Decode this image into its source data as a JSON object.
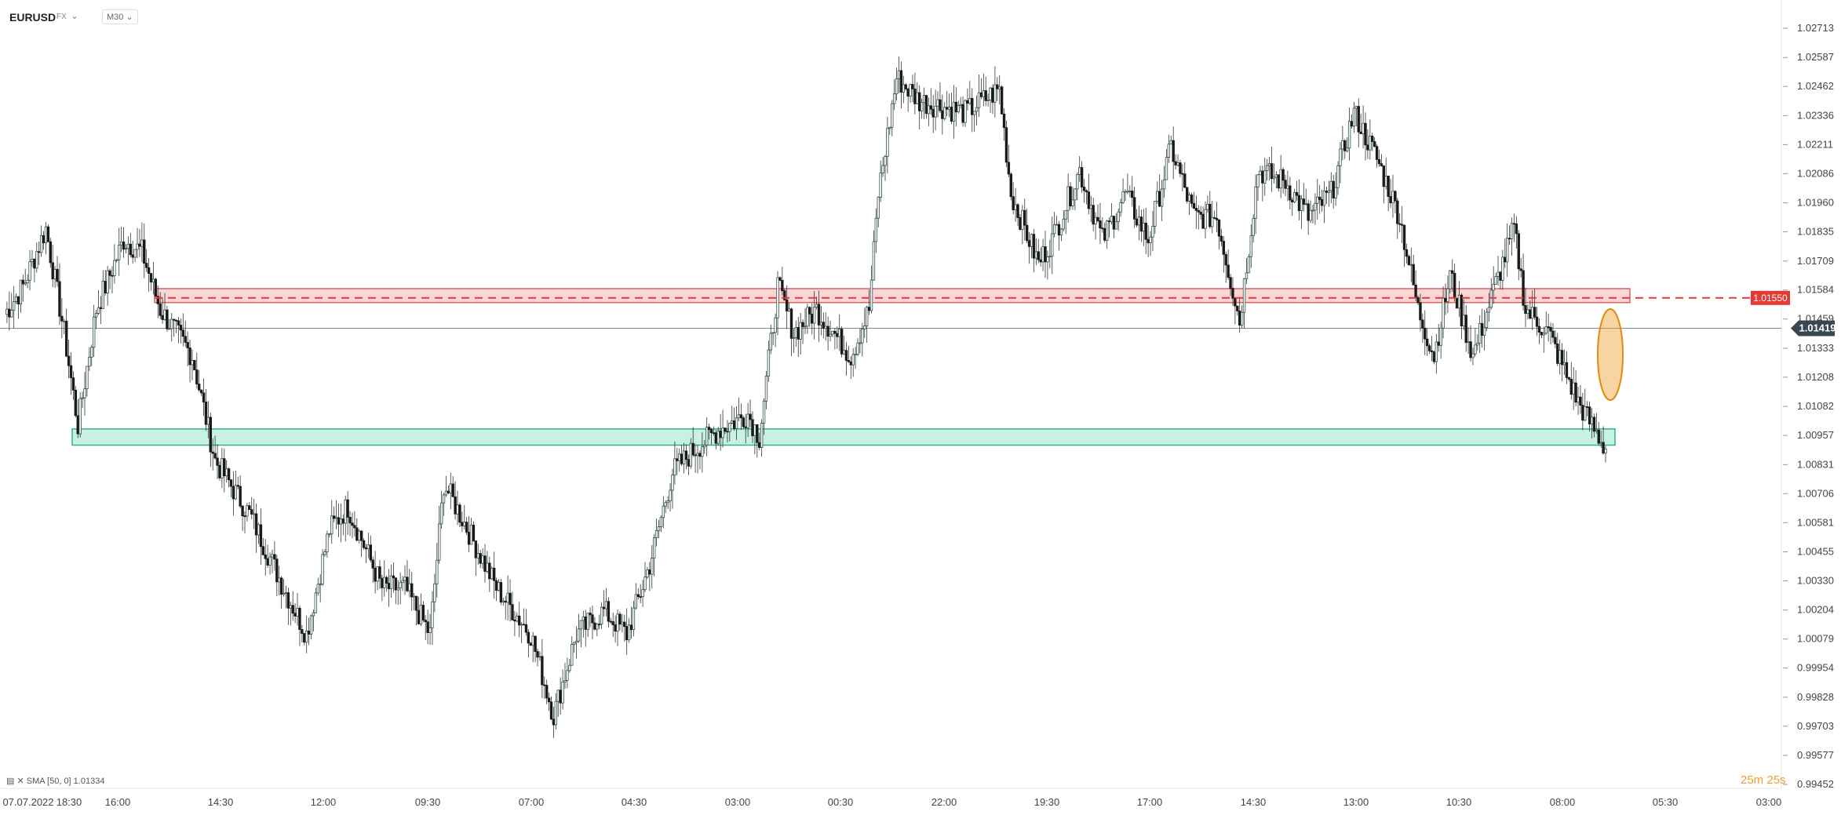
{
  "header": {
    "symbol": "EURUSD",
    "market": "FX",
    "market_dropdown_icon": "chevron-down-icon",
    "timeframe": "M30",
    "timeframe_dropdown_icon": "chevron-down-icon"
  },
  "indicator": {
    "icons": [
      "bar-chart-icon",
      "close-icon"
    ],
    "label": "SMA [50, 0] 1.01334"
  },
  "timer": "25m 25s",
  "colors": {
    "up_candle": "#2f4f4f",
    "down_candle": "#1a1a1a",
    "wick": "#333333",
    "resistance_zone": "#f08a8a",
    "support_zone": "#5ed6aa",
    "price_line": "#e53935",
    "current_price": "#37474f",
    "highlight": "#f0a030"
  },
  "chart_data": {
    "type": "candlestick",
    "title": "EURUSD M30",
    "y_ticks": [
      "1.02713",
      "1.02587",
      "1.02462",
      "1.02336",
      "1.02211",
      "1.02086",
      "1.01960",
      "1.01835",
      "1.01709",
      "1.01584",
      "1.01459",
      "1.01333",
      "1.01208",
      "1.01082",
      "1.00957",
      "1.00831",
      "1.00706",
      "1.00581",
      "1.00455",
      "1.00330",
      "1.00204",
      "1.00079",
      "0.99954",
      "0.99828",
      "0.99703",
      "0.99577",
      "0.99452"
    ],
    "x_ticks": [
      "07.07.2022",
      "18:30",
      "16:00",
      "14:30",
      "12:00",
      "09:30",
      "07:00",
      "04:30",
      "03:00",
      "00:30",
      "22:00",
      "19:30",
      "17:00",
      "14:30",
      "13:00",
      "10:30",
      "08:00",
      "05:30",
      "03:00"
    ],
    "ylim": [
      0.99452,
      1.02713
    ],
    "price_line": {
      "value": 1.0155,
      "label": "1.01550"
    },
    "current_price": {
      "value": 1.01419,
      "label": "1.01419"
    },
    "zones": [
      {
        "name": "resistance",
        "from": 1.0153,
        "to": 1.0159
      },
      {
        "name": "support",
        "from": 1.00915,
        "to": 1.00985
      }
    ],
    "path_anchors": [
      [
        0,
        1.0148
      ],
      [
        8,
        1.016
      ],
      [
        18,
        1.0185
      ],
      [
        26,
        1.014
      ],
      [
        32,
        1.01
      ],
      [
        40,
        1.015
      ],
      [
        52,
        1.018
      ],
      [
        60,
        1.0175
      ],
      [
        68,
        1.015
      ],
      [
        82,
        1.013
      ],
      [
        92,
        1.0085
      ],
      [
        108,
        1.006
      ],
      [
        122,
        1.003
      ],
      [
        132,
        1.001
      ],
      [
        142,
        1.0055
      ],
      [
        150,
        1.0065
      ],
      [
        165,
        1.003
      ],
      [
        175,
        1.003
      ],
      [
        186,
        1.001
      ],
      [
        192,
        1.0075
      ],
      [
        200,
        1.006
      ],
      [
        215,
        1.003
      ],
      [
        230,
        1.001
      ],
      [
        240,
        0.9975
      ],
      [
        250,
        1.001
      ],
      [
        262,
        1.002
      ],
      [
        272,
        1.001
      ],
      [
        282,
        1.004
      ],
      [
        292,
        1.008
      ],
      [
        302,
        1.009
      ],
      [
        312,
        1.0098
      ],
      [
        325,
        1.0105
      ],
      [
        330,
        1.0095
      ],
      [
        338,
        1.016
      ],
      [
        345,
        1.014
      ],
      [
        355,
        1.015
      ],
      [
        370,
        1.013
      ],
      [
        378,
        1.015
      ],
      [
        382,
        1.02
      ],
      [
        390,
        1.025
      ],
      [
        400,
        1.024
      ],
      [
        420,
        1.0235
      ],
      [
        435,
        1.0245
      ],
      [
        440,
        1.02
      ],
      [
        452,
        1.017
      ],
      [
        458,
        1.018
      ],
      [
        470,
        1.021
      ],
      [
        480,
        1.018
      ],
      [
        490,
        1.02
      ],
      [
        500,
        1.018
      ],
      [
        510,
        1.022
      ],
      [
        520,
        1.019
      ],
      [
        530,
        1.019
      ],
      [
        540,
        1.0145
      ],
      [
        548,
        1.021
      ],
      [
        560,
        1.0205
      ],
      [
        570,
        1.019
      ],
      [
        580,
        1.02
      ],
      [
        590,
        1.0235
      ],
      [
        600,
        1.0215
      ],
      [
        610,
        1.019
      ],
      [
        618,
        1.015
      ],
      [
        625,
        1.013
      ],
      [
        632,
        1.0165
      ],
      [
        642,
        1.013
      ],
      [
        650,
        1.0155
      ],
      [
        660,
        1.0185
      ],
      [
        665,
        1.015
      ],
      [
        675,
        1.014
      ],
      [
        688,
        1.011
      ],
      [
        700,
        1.009
      ]
    ]
  }
}
